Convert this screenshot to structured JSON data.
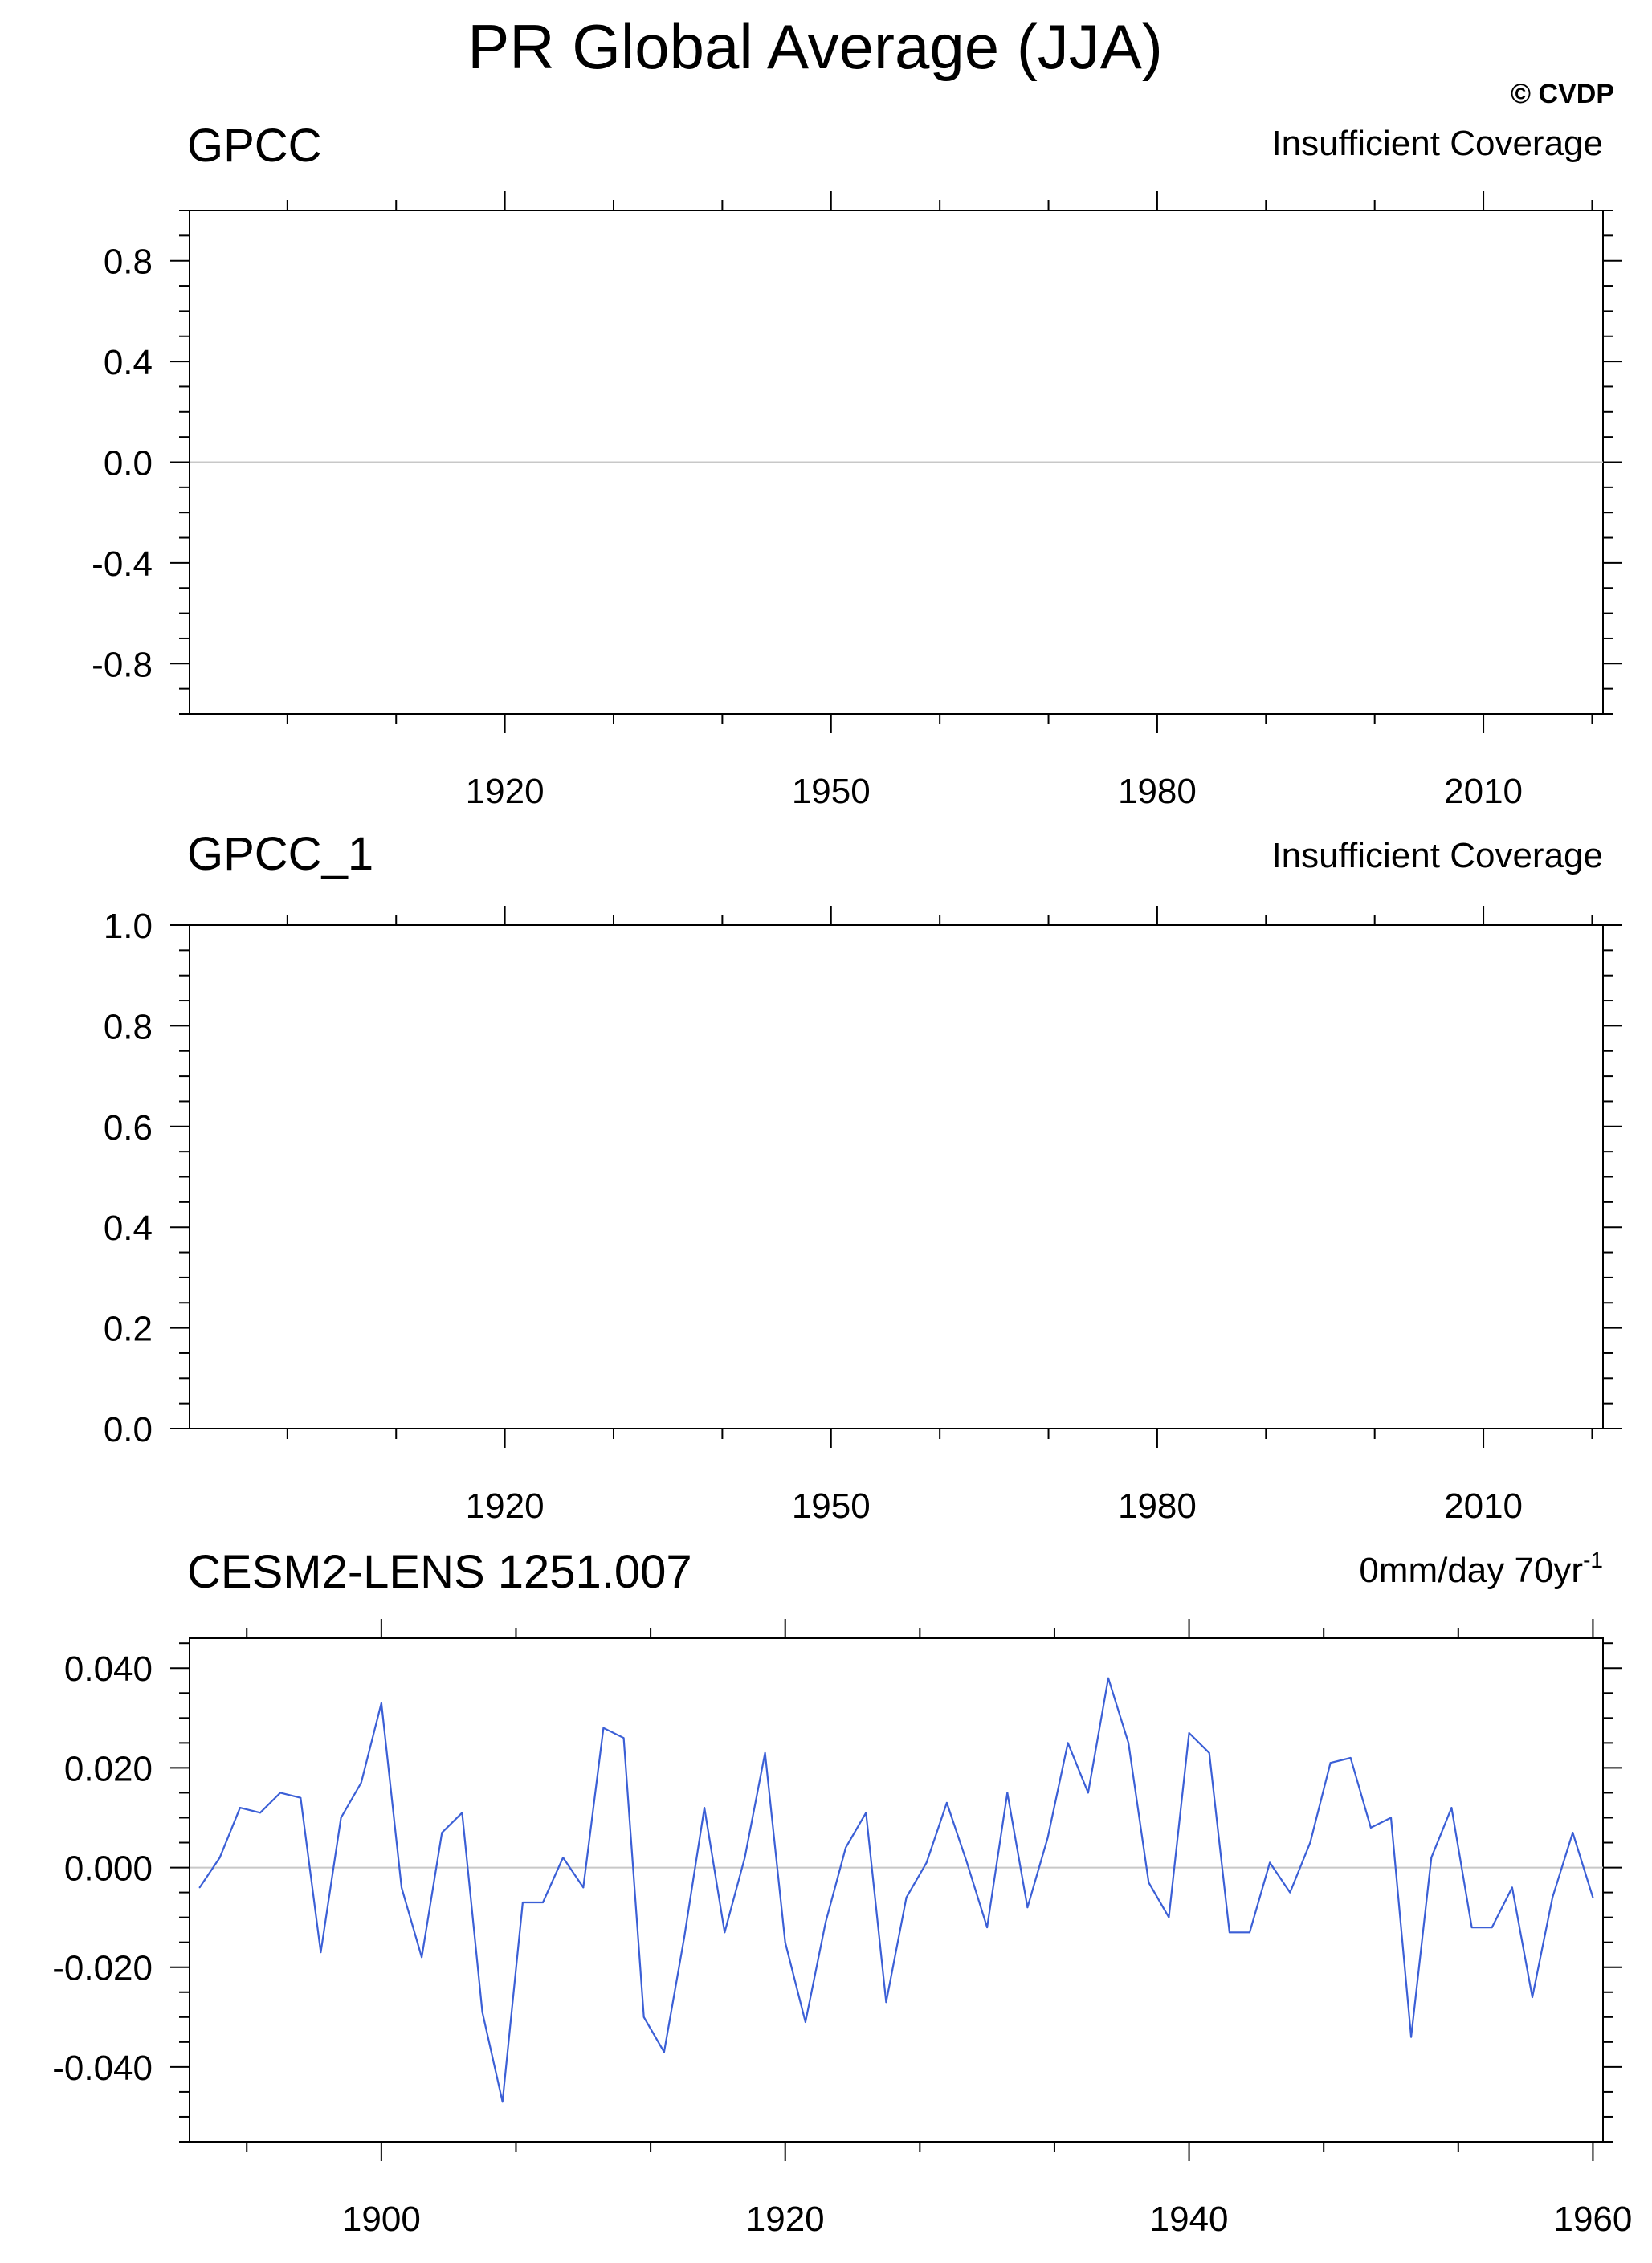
{
  "title": "PR Global Average (JJA)",
  "watermark": "© CVDP",
  "colors": {
    "series_line": "#3b5fd6",
    "zero_line": "#c8c8c8",
    "watermark": "#d7d7d7"
  },
  "chart_data": [
    {
      "type": "line",
      "left_title": "GPCC",
      "right_title": "Insufficient Coverage",
      "xlabel": "",
      "ylabel": "",
      "xlim": [
        1891,
        2021
      ],
      "ylim": [
        -1.0,
        1.0
      ],
      "x_ticks": [
        1920,
        1950,
        1980,
        2010
      ],
      "x_tick_labels": [
        "1920",
        "1950",
        "1980",
        "2010"
      ],
      "y_ticks": [
        0.8,
        0.4,
        0.0,
        -0.4,
        -0.8
      ],
      "y_tick_labels": [
        "0.8",
        "0.4",
        "0.0",
        "-0.4",
        "-0.8"
      ],
      "reference_line": 0.0,
      "series": []
    },
    {
      "type": "line",
      "left_title": "GPCC_1",
      "right_title": "Insufficient Coverage",
      "xlabel": "",
      "ylabel": "",
      "xlim": [
        1891,
        2021
      ],
      "ylim": [
        0.0,
        1.0
      ],
      "x_ticks": [
        1920,
        1950,
        1980,
        2010
      ],
      "x_tick_labels": [
        "1920",
        "1950",
        "1980",
        "2010"
      ],
      "y_ticks": [
        1.0,
        0.8,
        0.6,
        0.4,
        0.2,
        0.0
      ],
      "y_tick_labels": [
        "1.0",
        "0.8",
        "0.6",
        "0.4",
        "0.2",
        "0.0"
      ],
      "series": []
    },
    {
      "type": "line",
      "left_title": "CESM2-LENS 1251.007",
      "right_title": "0mm/day 70yr",
      "right_title_superscript": "-1",
      "xlabel": "",
      "ylabel": "",
      "xlim": [
        1890.5,
        1960.5
      ],
      "ylim": [
        -0.055,
        0.046
      ],
      "x_ticks": [
        1900,
        1920,
        1940,
        1960
      ],
      "x_tick_labels": [
        "1900",
        "1920",
        "1940",
        "1960"
      ],
      "y_ticks": [
        0.04,
        0.02,
        0.0,
        -0.02,
        -0.04
      ],
      "y_tick_labels": [
        "0.040",
        "0.020",
        "0.000",
        "-0.020",
        "-0.040"
      ],
      "reference_line": 0.0,
      "series": [
        {
          "x": [
            1891,
            1892,
            1893,
            1894,
            1895,
            1896,
            1897,
            1898,
            1899,
            1900,
            1901,
            1902,
            1903,
            1904,
            1905,
            1906,
            1907,
            1908,
            1909,
            1910,
            1911,
            1912,
            1913,
            1914,
            1915,
            1916,
            1917,
            1918,
            1919,
            1920,
            1921,
            1922,
            1923,
            1924,
            1925,
            1926,
            1927,
            1928,
            1929,
            1930,
            1931,
            1932,
            1933,
            1934,
            1935,
            1936,
            1937,
            1938,
            1939,
            1940,
            1941,
            1942,
            1943,
            1944,
            1945,
            1946,
            1947,
            1948,
            1949,
            1950,
            1951,
            1952,
            1953,
            1954,
            1955,
            1956,
            1957,
            1958,
            1959,
            1960
          ],
          "values": [
            -0.004,
            0.002,
            0.012,
            0.011,
            0.015,
            0.014,
            -0.017,
            0.01,
            0.017,
            0.033,
            -0.004,
            -0.018,
            0.007,
            0.011,
            -0.029,
            -0.047,
            -0.007,
            -0.007,
            0.002,
            -0.004,
            0.028,
            0.026,
            -0.03,
            -0.037,
            -0.014,
            0.012,
            -0.013,
            0.002,
            0.023,
            -0.015,
            -0.031,
            -0.011,
            0.004,
            0.011,
            -0.027,
            -0.006,
            0.001,
            0.013,
            0.001,
            -0.012,
            0.015,
            -0.008,
            0.006,
            0.025,
            0.015,
            0.038,
            0.025,
            -0.003,
            -0.01,
            0.027,
            0.023,
            -0.013,
            -0.013,
            0.001,
            -0.005,
            0.005,
            0.021,
            0.022,
            0.008,
            0.01,
            -0.034,
            0.002,
            0.012,
            -0.012,
            -0.012,
            -0.004,
            -0.026,
            -0.006,
            0.007,
            -0.006
          ]
        }
      ]
    }
  ]
}
